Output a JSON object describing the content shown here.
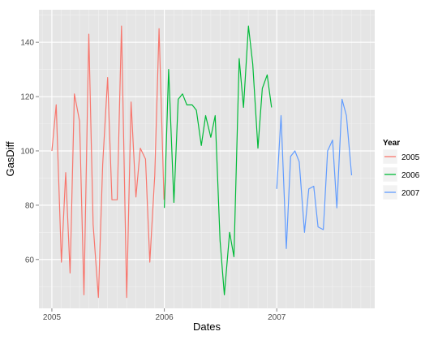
{
  "chart_data": {
    "type": "line",
    "title": "",
    "xlabel": "Dates",
    "ylabel": "GasDiff",
    "x_tick_labels": [
      "2005",
      "2006",
      "2007"
    ],
    "x_ticks": [
      "2005-01-01",
      "2006-01-01",
      "2007-01-01"
    ],
    "y_ticks": [
      60,
      80,
      100,
      120,
      140
    ],
    "xlim": [
      "2004-11-20",
      "2007-11-15"
    ],
    "ylim": [
      42,
      152
    ],
    "grid": true,
    "background": "#e5e5e5",
    "legend": {
      "title": "Year",
      "position": "right"
    },
    "series": [
      {
        "name": "2005",
        "color": "#f8766d",
        "points": [
          [
            "2005-01-01",
            100
          ],
          [
            "2005-01-15",
            117
          ],
          [
            "2005-02-01",
            59
          ],
          [
            "2005-02-15",
            92
          ],
          [
            "2005-03-01",
            55
          ],
          [
            "2005-03-15",
            121
          ],
          [
            "2005-04-01",
            111
          ],
          [
            "2005-04-15",
            47
          ],
          [
            "2005-05-01",
            143
          ],
          [
            "2005-05-15",
            73
          ],
          [
            "2005-06-01",
            46
          ],
          [
            "2005-06-15",
            95
          ],
          [
            "2005-07-01",
            127
          ],
          [
            "2005-07-15",
            82
          ],
          [
            "2005-08-01",
            82
          ],
          [
            "2005-08-15",
            146
          ],
          [
            "2005-09-01",
            46
          ],
          [
            "2005-09-15",
            118
          ],
          [
            "2005-10-01",
            83
          ],
          [
            "2005-10-15",
            101
          ],
          [
            "2005-11-01",
            97
          ],
          [
            "2005-11-15",
            59
          ],
          [
            "2005-12-01",
            91
          ],
          [
            "2005-12-15",
            145
          ],
          [
            "2005-12-31",
            82
          ]
        ]
      },
      {
        "name": "2006",
        "color": "#00ba38",
        "points": [
          [
            "2006-01-01",
            79
          ],
          [
            "2006-01-15",
            130
          ],
          [
            "2006-02-01",
            81
          ],
          [
            "2006-02-15",
            119
          ],
          [
            "2006-03-01",
            121
          ],
          [
            "2006-03-15",
            117
          ],
          [
            "2006-04-01",
            117
          ],
          [
            "2006-04-15",
            115
          ],
          [
            "2006-05-01",
            102
          ],
          [
            "2006-05-15",
            113
          ],
          [
            "2006-06-01",
            105
          ],
          [
            "2006-06-15",
            113
          ],
          [
            "2006-07-01",
            67
          ],
          [
            "2006-07-15",
            47
          ],
          [
            "2006-08-01",
            70
          ],
          [
            "2006-08-15",
            61
          ],
          [
            "2006-09-01",
            134
          ],
          [
            "2006-09-15",
            116
          ],
          [
            "2006-10-01",
            146
          ],
          [
            "2006-10-15",
            132
          ],
          [
            "2006-11-01",
            101
          ],
          [
            "2006-11-15",
            123
          ],
          [
            "2006-12-01",
            128
          ],
          [
            "2006-12-15",
            116
          ]
        ]
      },
      {
        "name": "2007",
        "color": "#619cff",
        "points": [
          [
            "2007-01-01",
            86
          ],
          [
            "2007-01-15",
            113
          ],
          [
            "2007-02-01",
            64
          ],
          [
            "2007-02-15",
            98
          ],
          [
            "2007-03-01",
            100
          ],
          [
            "2007-03-15",
            96
          ],
          [
            "2007-04-01",
            70
          ],
          [
            "2007-04-15",
            86
          ],
          [
            "2007-05-01",
            87
          ],
          [
            "2007-05-15",
            72
          ],
          [
            "2007-06-01",
            71
          ],
          [
            "2007-06-15",
            100
          ],
          [
            "2007-07-01",
            104
          ],
          [
            "2007-07-15",
            79
          ],
          [
            "2007-08-01",
            119
          ],
          [
            "2007-08-15",
            113
          ],
          [
            "2007-09-01",
            91
          ]
        ]
      }
    ]
  }
}
